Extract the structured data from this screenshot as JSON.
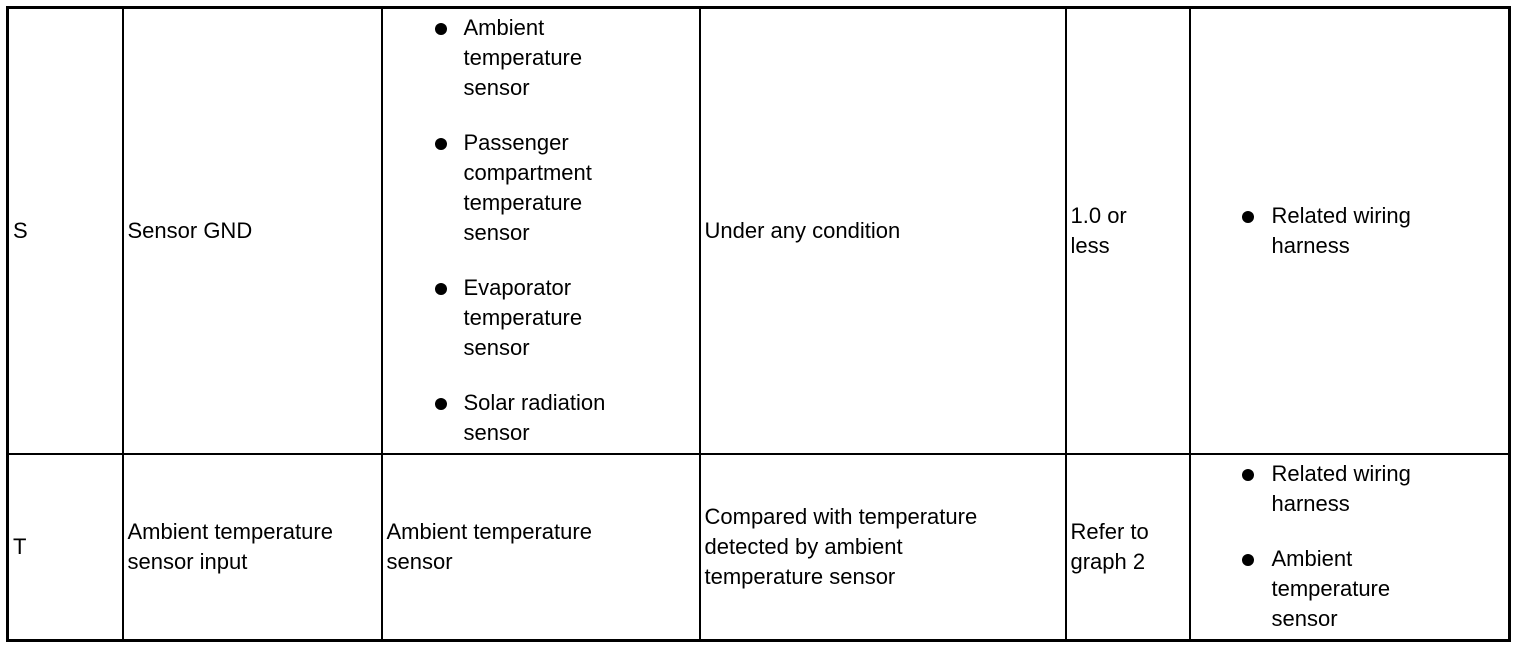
{
  "rows": [
    {
      "terminal": "S",
      "description": "Sensor GND",
      "connected_items": [
        "Ambient temperature sensor",
        "Passenger compartment temperature sensor",
        "Evaporator temperature sensor",
        "Solar radiation sensor"
      ],
      "condition": "Under any condition",
      "value": "1.0 or less",
      "check_items": [
        "Related wiring harness"
      ]
    },
    {
      "terminal": "T",
      "description": "Ambient temperature sensor input",
      "connected_item": "Ambient temperature sensor",
      "condition": "Compared with temperature detected by ambient temperature sensor",
      "value": "Refer to graph 2",
      "check_items": [
        "Related wiring harness",
        "Ambient temperature sensor"
      ]
    }
  ],
  "icons": {
    "bullet": "filled-circle-bullet"
  }
}
